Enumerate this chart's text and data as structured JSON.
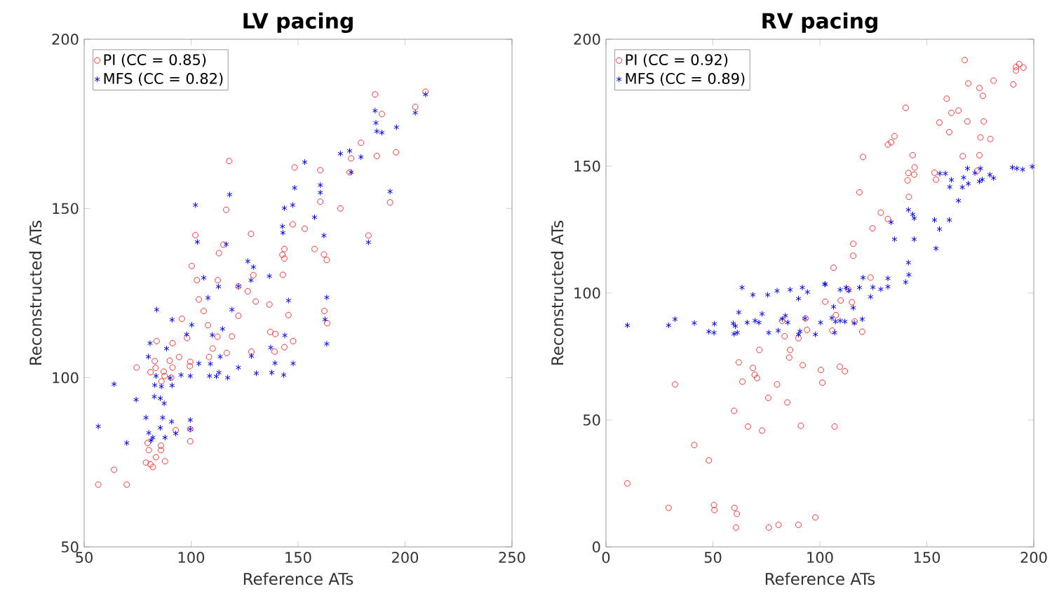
{
  "chart_data": [
    {
      "type": "scatter",
      "title": "LV pacing",
      "xlabel": "Reference ATs",
      "ylabel": "Reconstructed ATs",
      "xlim": [
        50,
        250
      ],
      "ylim": [
        50,
        200
      ],
      "xticks": [
        50,
        100,
        150,
        200,
        250
      ],
      "yticks": [
        50,
        100,
        150,
        200
      ],
      "legend": "top left",
      "series": [
        {
          "name": "PI (CC = 0.85)",
          "color": "#ff3030",
          "marker": "circle",
          "x": [
            209.6,
            204.8,
            186,
            189.2,
            179.4,
            174.8,
            186.8,
            195.8,
            174.1,
            160.4,
            148.4,
            117.8,
            160.4,
            169.8,
            193,
            116.4,
            102,
            115.1,
            128,
            147.5,
            153.1,
            182.9,
            113,
            143.6,
            142.7,
            143.6,
            157.7,
            162.1,
            163.4,
            100.3,
            102.7,
            112.5,
            129.1,
            142.9,
            122.1,
            126.5,
            103.6,
            130.2,
            136.6,
            105.9,
            95.7,
            122.1,
            145.5,
            162.3,
            163.6,
            107.9,
            98.1,
            112.3,
            119.1,
            83.9,
            91.3,
            137,
            139.4,
            147.7,
            143.6,
            110.1,
            94.4,
            108.4,
            116.7,
            128.2,
            139,
            90,
            99.6,
            83,
            74.5,
            81,
            83.4,
            99.4,
            91.3,
            87.2,
            87.6,
            90.7,
            86.1,
            92.8,
            99.6,
            99.6,
            79.7,
            85.9,
            80.2,
            85.9,
            83.6,
            78.9,
            87.8,
            81,
            82.1,
            64,
            56.6,
            69.9
          ],
          "values": [
            184.5,
            180,
            183.7,
            177.9,
            169.4,
            164.8,
            165.5,
            166.6,
            160.7,
            161.3,
            162.1,
            164,
            152,
            150,
            151.8,
            149.6,
            142.1,
            139.3,
            142.5,
            145.3,
            144,
            142,
            136.8,
            138,
            136.3,
            135.2,
            138,
            136.4,
            134.8,
            133,
            128.8,
            128.8,
            130.3,
            130.4,
            127,
            125.5,
            123.1,
            122.5,
            121.6,
            119.7,
            117.4,
            118.3,
            118.5,
            119.7,
            116.1,
            115.5,
            111.7,
            112.1,
            112.2,
            110.8,
            110.2,
            113.5,
            112.9,
            110.8,
            109,
            108.6,
            106.1,
            106.1,
            107.3,
            107.7,
            107.7,
            105,
            104.7,
            104.9,
            103,
            101.6,
            102.9,
            103.4,
            103,
            101.8,
            100.5,
            100,
            98.9,
            84.5,
            84.8,
            81.2,
            80.7,
            79.9,
            78.6,
            78.6,
            76.5,
            74.9,
            75.3,
            74.4,
            73.6,
            72.8,
            68.4,
            68.4
          ]
        },
        {
          "name": "MFS (CC = 0.82)",
          "color": "#0000ff",
          "marker": "cross",
          "x": [
            209.6,
            204.8,
            186,
            186.4,
            186.8,
            189.2,
            196,
            169.8,
            174.1,
            179.4,
            174.8,
            153.1,
            160.4,
            160.4,
            148.4,
            193,
            118,
            102,
            147.5,
            143.6,
            157.7,
            142.7,
            142.9,
            162.1,
            102.9,
            116.4,
            182.9,
            126.5,
            129.1,
            105.9,
            136.6,
            128,
            112.8,
            122.1,
            107.9,
            145.5,
            163.4,
            83.9,
            119.1,
            91.1,
            100.3,
            114.7,
            97.9,
            109.9,
            143.8,
            162.6,
            163.4,
            80.8,
            88.5,
            137.2,
            80,
            128.2,
            113.6,
            103.6,
            109,
            139.2,
            147.7,
            122.1,
            95.3,
            83.6,
            90.2,
            99.6,
            108.6,
            113,
            111.8,
            117.1,
            130.5,
            137.7,
            143.3,
            64,
            83,
            86.1,
            91.1,
            74.3,
            82.8,
            85.6,
            87.4,
            78.9,
            86.7,
            99.6,
            90.9,
            85.6,
            56.6,
            80.2,
            92.8,
            82.1,
            87.8,
            81.3,
            69.9,
            99.6
          ],
          "values": [
            183.7,
            178.3,
            178.9,
            175.3,
            172.8,
            172.4,
            174,
            166.2,
            167,
            165.2,
            160.7,
            163.7,
            156.9,
            154.7,
            156.1,
            155,
            154.1,
            151,
            151,
            150.1,
            147.4,
            144.7,
            142.8,
            142,
            140.1,
            139.4,
            140,
            134.4,
            132.7,
            129.5,
            130,
            128.8,
            126.9,
            127,
            123.6,
            122.8,
            123.7,
            120.1,
            120.1,
            117.1,
            115.6,
            114.4,
            112.8,
            112.6,
            112.5,
            117.2,
            110,
            110.2,
            108.6,
            108.9,
            106.2,
            106.4,
            106.2,
            104.2,
            104.1,
            104.3,
            104.2,
            103,
            100.8,
            100.5,
            99.9,
            100.5,
            100.5,
            101.5,
            100.4,
            100,
            101.3,
            101.5,
            100.8,
            98.1,
            97.8,
            97.4,
            97.7,
            93.5,
            94.4,
            93.9,
            92.4,
            88.2,
            88.2,
            87.5,
            87,
            85.2,
            85.6,
            83.7,
            83.5,
            82.3,
            82.3,
            81.5,
            80.7,
            84.8
          ]
        }
      ]
    },
    {
      "type": "scatter",
      "title": "RV pacing",
      "xlabel": "Reference ATs",
      "ylabel": "Reconstructed ATs",
      "xlim": [
        0,
        200
      ],
      "ylim": [
        0,
        200
      ],
      "xticks": [
        0,
        50,
        100,
        150,
        200
      ],
      "yticks": [
        0,
        50,
        100,
        150,
        200
      ],
      "legend": "top left",
      "series": [
        {
          "name": "PI (CC = 0.92)",
          "color": "#ff3030",
          "marker": "circle",
          "x": [
            167.7,
            193.2,
            191.7,
            195.2,
            191.7,
            169.4,
            181.2,
            190.4,
            174.6,
            176.2,
            159.3,
            140.1,
            164.8,
            161.5,
            155.9,
            169,
            176.6,
            160.5,
            134.9,
            133.3,
            131.8,
            175.1,
            179.7,
            120.2,
            143.4,
            166.8,
            174.6,
            144.3,
            141.4,
            144.1,
            153.6,
            173.6,
            141,
            154.3,
            118.5,
            141.6,
            128.5,
            131.8,
            124.6,
            115.6,
            115.6,
            106.4,
            123.7,
            102.5,
            109.7,
            107.5,
            115,
            116.3,
            113.2,
            93.3,
            82.4,
            94,
            105.8,
            119.8,
            83.5,
            90,
            71.7,
            86.1,
            85.7,
            62.1,
            92,
            68.7,
            109.3,
            111.7,
            100.5,
            69.5,
            70.6,
            63.8,
            32.3,
            80,
            101.2,
            75.9,
            84.8,
            59.9,
            66.4,
            73,
            91.1,
            106.9,
            41.3,
            48.1,
            10,
            29.3,
            50.5,
            50.7,
            60.1,
            61.2,
            60.8,
            76.1,
            80.7,
            90,
            97.9
          ],
          "values": [
            191.8,
            190.2,
            189.1,
            188.8,
            187.7,
            182.6,
            183.7,
            182.2,
            180.8,
            177.7,
            176.6,
            173,
            171.9,
            171,
            167.2,
            167.6,
            167.6,
            163.4,
            161.8,
            159.4,
            158.5,
            161.3,
            160.7,
            153.6,
            154.3,
            153.9,
            154.3,
            149.5,
            147.3,
            146.7,
            147.4,
            148.2,
            144.4,
            144.7,
            139.7,
            137.9,
            131.7,
            129.2,
            125.5,
            119.4,
            114.7,
            110,
            106.1,
            96.6,
            97.1,
            91.3,
            96.4,
            88.8,
            101.5,
            90,
            89.1,
            85.5,
            85.2,
            84.8,
            83,
            82.2,
            77.6,
            77.6,
            74.6,
            72.7,
            71.6,
            70.5,
            71,
            69.2,
            69.7,
            67.8,
            66.5,
            65.1,
            64,
            64,
            64.7,
            58.7,
            56.9,
            53.6,
            47.4,
            45.8,
            47.7,
            47.4,
            40.1,
            34.1,
            25,
            15.4,
            16.5,
            14.5,
            15.4,
            13,
            7.6,
            7.6,
            8.7,
            8.7,
            11.6
          ]
        },
        {
          "name": "MFS (CC = 0.89)",
          "color": "#0000ff",
          "marker": "cross",
          "x": [
            199.3,
            190,
            192.1,
            194.8,
            169,
            175.1,
            172.5,
            156.1,
            158.7,
            161.5,
            167.2,
            179.5,
            181.2,
            175.9,
            174.6,
            169.4,
            160.7,
            166.6,
            164.8,
            141.4,
            143.4,
            144.1,
            153.6,
            160.5,
            133.3,
            155.9,
            134.9,
            144.1,
            154.3,
            141.4,
            141.6,
            120.2,
            131.8,
            140.1,
            102.5,
            131.8,
            124.8,
            128.5,
            123.7,
            118.5,
            112.3,
            113.6,
            109.5,
            102.3,
            63.6,
            91.8,
            94.2,
            90,
            86.1,
            80,
            75.6,
            68.7,
            106.4,
            115.6,
            62.1,
            73,
            83.9,
            93.1,
            105.6,
            119.8,
            32.3,
            10,
            29.3,
            41.3,
            50.7,
            59.5,
            60.5,
            66,
            69.7,
            71.5,
            82.4,
            85,
            100.3,
            107.3,
            109.5,
            111.7,
            116.1,
            48.1,
            50.5,
            59.9,
            61.4,
            76.1,
            80.5,
            90.7,
            90,
            97.9,
            106.9
          ],
          "values": [
            149.8,
            149.5,
            149.1,
            148.7,
            149.1,
            149.1,
            147.3,
            147.1,
            147.1,
            144.6,
            145.5,
            146.6,
            145.3,
            144.7,
            144,
            143.1,
            141.8,
            141.7,
            136.4,
            132.8,
            131,
            129.5,
            128.8,
            128.8,
            127.9,
            125.2,
            121.2,
            121.2,
            117.6,
            112,
            107.2,
            106.1,
            105.8,
            104.3,
            103.6,
            102.5,
            102.3,
            101.5,
            98.5,
            102.2,
            102.2,
            101,
            101.3,
            103.4,
            102.2,
            102.2,
            100.4,
            97.8,
            101.3,
            100.9,
            99.3,
            99.3,
            94.6,
            94.2,
            92.4,
            91.8,
            91.1,
            90,
            90.2,
            89.7,
            89.7,
            87.3,
            87.3,
            88.2,
            87.9,
            88,
            87,
            88.4,
            89.1,
            88.4,
            89.8,
            88.4,
            88.4,
            88.8,
            89.1,
            88.8,
            88.2,
            84.8,
            84.4,
            83.9,
            84.4,
            84.4,
            85.2,
            84.9,
            83.7,
            83.7,
            84.4
          ]
        }
      ]
    }
  ]
}
